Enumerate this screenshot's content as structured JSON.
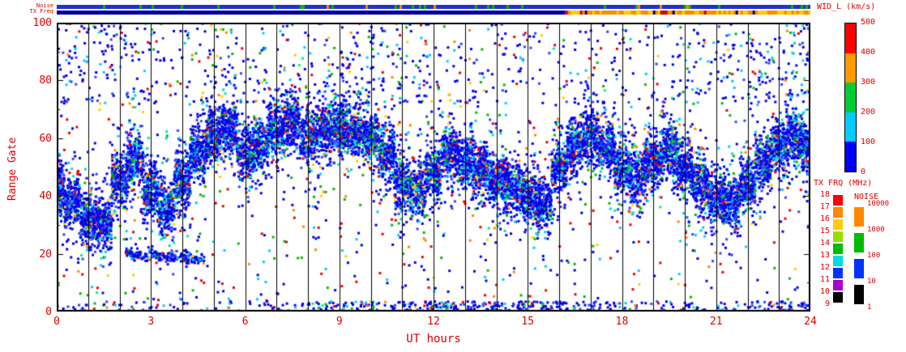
{
  "strips": {
    "noise_label": "Noise",
    "tx_freq_label": "TX Freq",
    "noise_strip": {
      "base": "#2233cc",
      "tick_colors": [
        [
          "#00bb00",
          0.1
        ],
        [
          "#ff8800",
          0.02
        ]
      ]
    },
    "tx_strip": {
      "segments": [
        {
          "from": 0,
          "to": 16.2,
          "base": "#000099",
          "tick_colors": []
        },
        {
          "from": 16.2,
          "to": 24,
          "base": "#ffcc00",
          "tick_colors": [
            [
              "#ff8800",
              0.45
            ],
            [
              "#cc0000",
              0.06
            ],
            [
              "#000099",
              0.06
            ]
          ]
        }
      ]
    }
  },
  "colorbar_wid": {
    "title": "WID_L (km/s)",
    "ticks": [
      "500",
      "400",
      "300",
      "200",
      "100",
      "0"
    ],
    "colors": [
      "#ff0000",
      "#ff9900",
      "#00cc33",
      "#00ccff",
      "#0000ff"
    ]
  },
  "legend_txfrq": {
    "title": "TX FRQ (MHz)",
    "ticks": [
      "18",
      "17",
      "16",
      "15",
      "14",
      "13",
      "12",
      "11",
      "10",
      "9"
    ],
    "colors": [
      "#ff0000",
      "#ff8800",
      "#ffcc00",
      "#99dd00",
      "#00bb00",
      "#00dddd",
      "#0033ff",
      "#aa00cc",
      "#000000"
    ]
  },
  "legend_noise": {
    "title": "NOISE",
    "ticks": [
      "10000",
      "1000",
      "100",
      "10",
      "1"
    ],
    "colors": [
      "#ff8800",
      "#00bb00",
      "#0033ff",
      "#000000"
    ]
  },
  "chart_data": {
    "type": "scatter",
    "title": "",
    "xlabel": "UT hours",
    "ylabel": "Range Gate",
    "xlim": [
      0,
      24
    ],
    "ylim": [
      0,
      100
    ],
    "xticks": [
      0,
      3,
      6,
      9,
      12,
      15,
      18,
      21,
      24
    ],
    "yticks": [
      0,
      20,
      40,
      60,
      80,
      100
    ],
    "grid": "vertical-line-every-hour",
    "colorbar": {
      "label": "WID_L (km/s)",
      "range": [
        0,
        500
      ]
    },
    "features": {
      "main_band": {
        "x_step": 0.5,
        "centers": [
          44,
          38,
          32,
          30,
          45,
          52,
          42,
          36,
          45,
          55,
          60,
          63,
          55,
          58,
          62,
          65,
          60,
          62,
          64,
          62,
          60,
          55,
          45,
          42,
          48,
          55,
          52,
          50,
          46,
          43,
          40,
          37,
          50,
          57,
          60,
          57,
          50,
          46,
          52,
          56,
          50,
          44,
          40,
          37,
          44,
          52,
          57,
          60,
          56
        ],
        "sigma": 4.5,
        "points_per_step": 230,
        "halo_sigma": 11,
        "halo_points_per_step": 35
      },
      "low_band": {
        "x_range": [
          2.2,
          4.7
        ],
        "center_start": 20,
        "center_end": 18,
        "sigma": 1.1,
        "points": 240
      },
      "bottom_band": {
        "y_range": [
          0,
          3.5
        ],
        "hour_weights": [
          1,
          0.6,
          0.6,
          0.4,
          0.4,
          0.8,
          1,
          0.8,
          1.6,
          2,
          2,
          2.6,
          3,
          3,
          3,
          2.6,
          2,
          1.6,
          1,
          1,
          1,
          1,
          1.6,
          2
        ],
        "points_per_weight": 13
      },
      "top_scatter": {
        "y_range": [
          72,
          100
        ],
        "hour_weights": [
          3,
          2.5,
          2,
          1.2,
          1,
          1.6,
          1,
          1.2,
          1.6,
          2,
          3,
          2.4,
          1,
          1.4,
          2,
          1,
          1.2,
          1,
          1.4,
          1.4,
          2,
          2.4,
          3,
          3
        ],
        "points_per_weight": 14
      },
      "salt": {
        "points": 800
      }
    },
    "point_color_weights": {
      "band": [
        [
          "#0000ee",
          0.58
        ],
        [
          "#3344ff",
          0.16
        ],
        [
          "#00ccff",
          0.1
        ],
        [
          "#00ee99",
          0.03
        ],
        [
          "#00bb00",
          0.05
        ],
        [
          "#ffcc00",
          0.02
        ],
        [
          "#ff8800",
          0.02
        ],
        [
          "#ee0000",
          0.04
        ]
      ],
      "salt": [
        [
          "#0000ee",
          0.38
        ],
        [
          "#00ccff",
          0.14
        ],
        [
          "#00bb00",
          0.16
        ],
        [
          "#ee0000",
          0.2
        ],
        [
          "#ffcc00",
          0.06
        ],
        [
          "#ff8800",
          0.06
        ]
      ]
    }
  }
}
